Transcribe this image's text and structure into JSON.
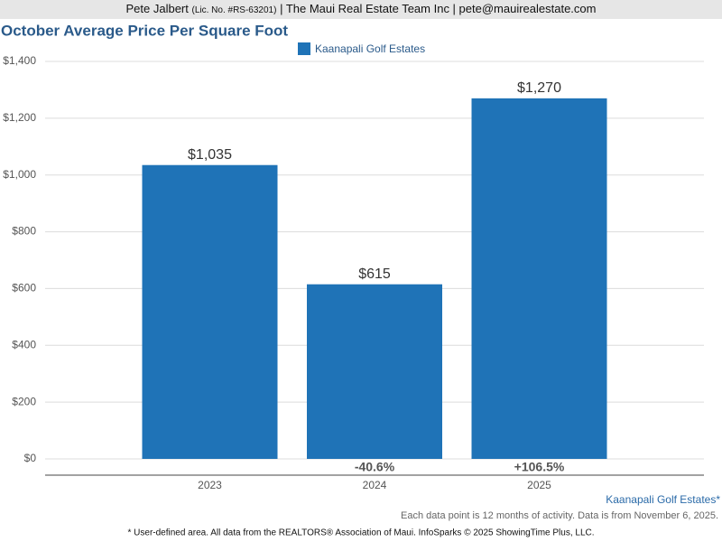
{
  "header": {
    "name": "Pete Jalbert",
    "license": "(Lic. No. #RS-63201)",
    "rest": "| The Maui Real Estate Team Inc | pete@mauirealestate.com"
  },
  "chart_data": {
    "type": "bar",
    "title": "October Average Price Per Square Foot",
    "categories": [
      "2023",
      "2024",
      "2025"
    ],
    "series": [
      {
        "name": "Kaanapali Golf Estates",
        "color": "#1f73b7",
        "values": [
          1035,
          615,
          1270
        ],
        "value_labels": [
          "$1,035",
          "$615",
          "$1,270"
        ]
      }
    ],
    "change_labels": [
      null,
      "-40.6%",
      "+106.5%"
    ],
    "ylim": [
      0,
      1400
    ],
    "yticks": [
      {
        "value": 0,
        "label": "$0"
      },
      {
        "value": 200,
        "label": "$200"
      },
      {
        "value": 400,
        "label": "$400"
      },
      {
        "value": 600,
        "label": "$600"
      },
      {
        "value": 800,
        "label": "$800"
      },
      {
        "value": 1000,
        "label": "$1,000"
      },
      {
        "value": 1200,
        "label": "$1,200"
      },
      {
        "value": 1400,
        "label": "$1,400"
      }
    ],
    "grid": true
  },
  "footer": {
    "area": "Kaanapali Golf Estates*",
    "note": "Each data point is 12 months of activity. Data is from November 6, 2025.",
    "source": "* User-defined area. All data from the REALTORS® Association of Maui. InfoSparks © 2025 ShowingTime Plus, LLC."
  }
}
